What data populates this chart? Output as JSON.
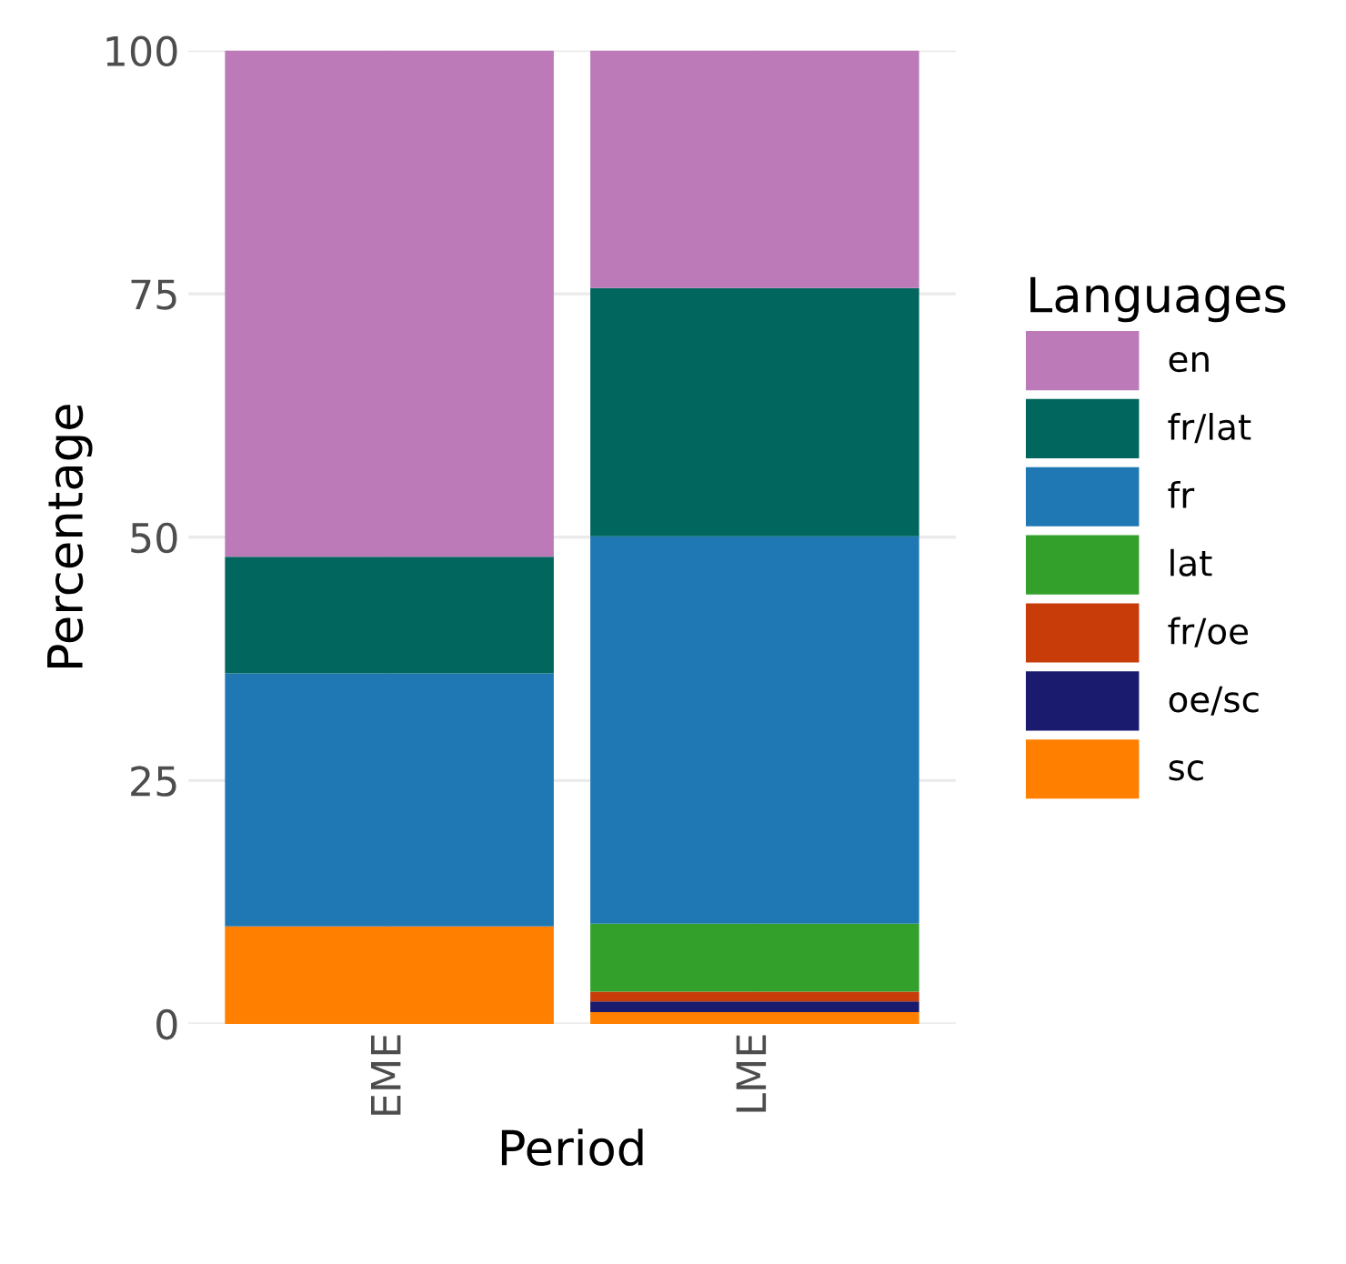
{
  "chart_data": {
    "type": "bar",
    "stacked": true,
    "xlabel": "Period",
    "ylabel": "Percentage",
    "legend_title": "Languages",
    "legend": "right",
    "grid": true,
    "categories": [
      "EME",
      "LME"
    ],
    "ylim": [
      0,
      100
    ],
    "yticks": [
      0,
      25,
      50,
      75,
      100
    ],
    "series": [
      {
        "name": "sc",
        "color": "#ff7f00",
        "values": [
          10,
          1.2
        ]
      },
      {
        "name": "oe/sc",
        "color": "#1a1a6e",
        "values": [
          0,
          1.1
        ]
      },
      {
        "name": "fr/oe",
        "color": "#c83c0a",
        "values": [
          0,
          1.0
        ]
      },
      {
        "name": "lat",
        "color": "#33a02c",
        "values": [
          0,
          7
        ]
      },
      {
        "name": "fr",
        "color": "#1f78b4",
        "values": [
          26,
          39.8
        ]
      },
      {
        "name": "fr/lat",
        "color": "#00665e",
        "values": [
          12,
          25.5
        ]
      },
      {
        "name": "en",
        "color": "#bc7bb8",
        "values": [
          52,
          24.4
        ]
      }
    ]
  }
}
